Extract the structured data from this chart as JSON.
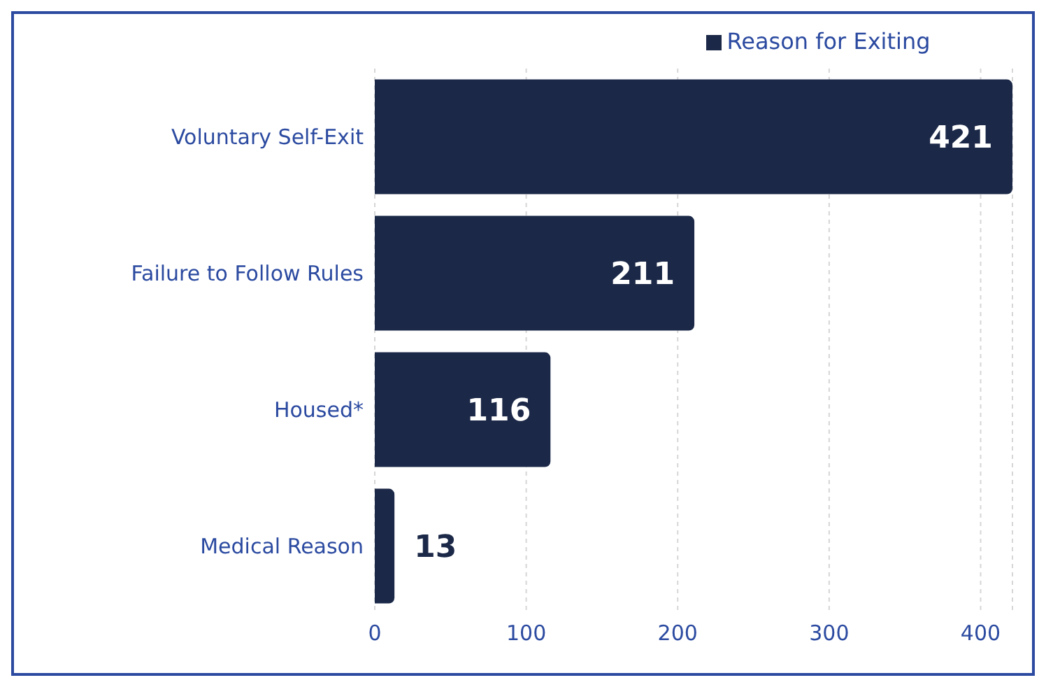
{
  "chart_data": {
    "type": "bar",
    "orientation": "horizontal",
    "categories": [
      "Voluntary Self-Exit",
      "Failure to Follow Rules",
      "Housed*",
      "Medical Reason"
    ],
    "series": [
      {
        "name": "Reason for Exiting",
        "color": "#1b2847",
        "values": [
          421,
          211,
          116,
          13
        ]
      }
    ],
    "xlim": [
      0,
      421
    ],
    "xticks": [
      0,
      100,
      200,
      300,
      400
    ],
    "grid": "x",
    "legend": "top",
    "data_labels": true
  }
}
